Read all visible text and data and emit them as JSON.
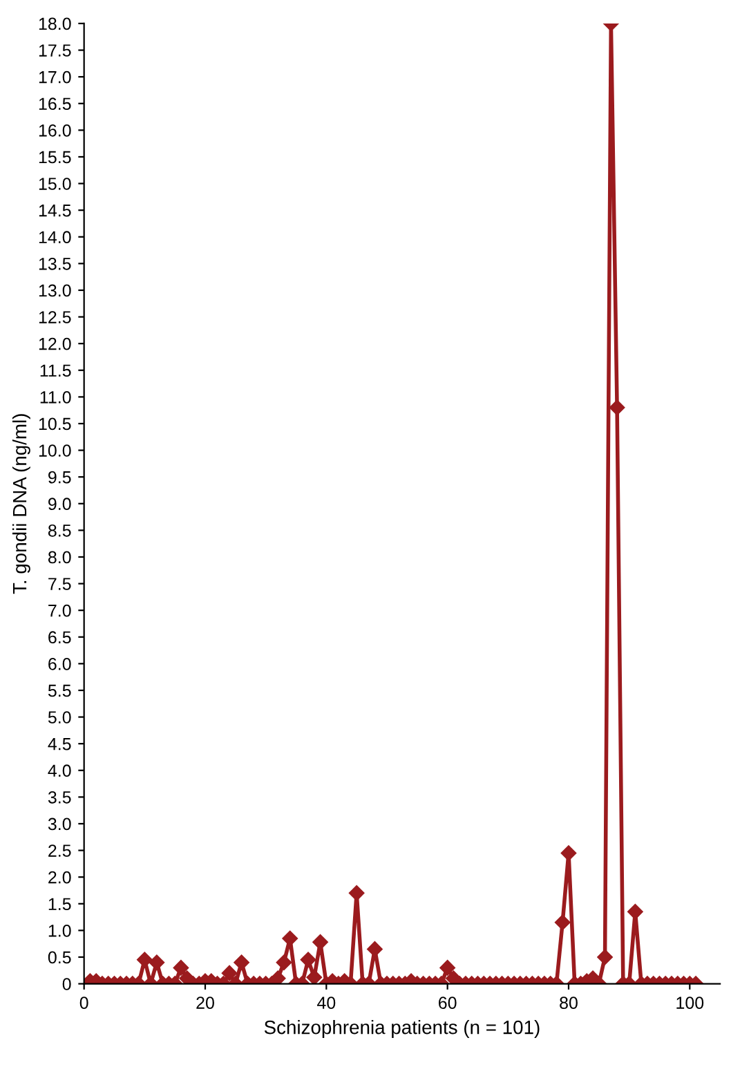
{
  "chart_data": {
    "type": "line",
    "xlabel": "Schizophrenia patients (n = 101)",
    "ylabel": "T. gondii DNA (ng/ml)",
    "x": [
      1,
      2,
      3,
      4,
      5,
      6,
      7,
      8,
      9,
      10,
      11,
      12,
      13,
      14,
      15,
      16,
      17,
      18,
      19,
      20,
      21,
      22,
      23,
      24,
      25,
      26,
      27,
      28,
      29,
      30,
      31,
      32,
      33,
      34,
      35,
      36,
      37,
      38,
      39,
      40,
      41,
      42,
      43,
      44,
      45,
      46,
      47,
      48,
      49,
      50,
      51,
      52,
      53,
      54,
      55,
      56,
      57,
      58,
      59,
      60,
      61,
      62,
      63,
      64,
      65,
      66,
      67,
      68,
      69,
      70,
      71,
      72,
      73,
      74,
      75,
      76,
      77,
      78,
      79,
      80,
      81,
      82,
      83,
      84,
      85,
      86,
      87,
      88,
      89,
      90,
      91,
      92,
      93,
      94,
      95,
      96,
      97,
      98,
      99,
      100,
      101
    ],
    "series": [
      {
        "color": "#9b1b1e",
        "values": [
          0.05,
          0.05,
          0,
          0,
          0,
          0,
          0,
          0,
          0,
          0.45,
          0,
          0.4,
          0,
          0,
          0,
          0.3,
          0.1,
          0,
          0,
          0.05,
          0.05,
          0,
          0,
          0.2,
          0,
          0.4,
          0,
          0,
          0,
          0,
          0,
          0.1,
          0.4,
          0.85,
          0,
          0,
          0.45,
          0.12,
          0.78,
          0,
          0.05,
          0,
          0.05,
          0,
          1.7,
          0,
          0,
          0.65,
          0,
          0,
          0,
          0,
          0,
          0.05,
          0,
          0,
          0,
          0,
          0,
          0.3,
          0.1,
          0,
          0,
          0,
          0,
          0,
          0,
          0,
          0,
          0,
          0,
          0,
          0,
          0,
          0,
          0,
          0,
          0,
          1.15,
          2.45,
          0,
          0,
          0.05,
          0.1,
          0,
          0.5,
          18.0,
          10.8,
          0,
          0,
          1.35,
          0,
          0,
          0,
          0,
          0,
          0,
          0,
          0,
          0,
          0
        ]
      }
    ],
    "xlim": [
      0,
      105
    ],
    "xticks": [
      0,
      20,
      40,
      60,
      80,
      100
    ],
    "ylim": [
      0,
      18
    ],
    "yticks": [
      0,
      0.5,
      {
        "value": 1,
        "label": "1.0"
      },
      1.5,
      {
        "value": 2,
        "label": "2.0"
      },
      2.5,
      {
        "value": 3,
        "label": "3.0"
      },
      3.5,
      {
        "value": 4,
        "label": "4.0"
      },
      4.5,
      {
        "value": 5,
        "label": "5.0"
      },
      5.5,
      {
        "value": 6,
        "label": "6.0"
      },
      6.5,
      {
        "value": 7,
        "label": "7.0"
      },
      7.5,
      {
        "value": 8,
        "label": "8.0"
      },
      8.5,
      {
        "value": 9,
        "label": "9.0"
      },
      9.5,
      {
        "value": 10,
        "label": "10.0"
      },
      10.5,
      {
        "value": 11,
        "label": "11.0"
      },
      11.5,
      {
        "value": 12,
        "label": "12.0"
      },
      12.5,
      {
        "value": 13,
        "label": "13.0"
      },
      13.5,
      {
        "value": 14,
        "label": "14.0"
      },
      14.5,
      {
        "value": 15,
        "label": "15.0"
      },
      15.5,
      {
        "value": 16,
        "label": "16.0"
      },
      16.5,
      {
        "value": 17,
        "label": "17.0"
      },
      17.5,
      {
        "value": 18,
        "label": "18.0"
      }
    ],
    "marker": "diamond",
    "line_style": "solid",
    "grid": false,
    "legend": false
  }
}
